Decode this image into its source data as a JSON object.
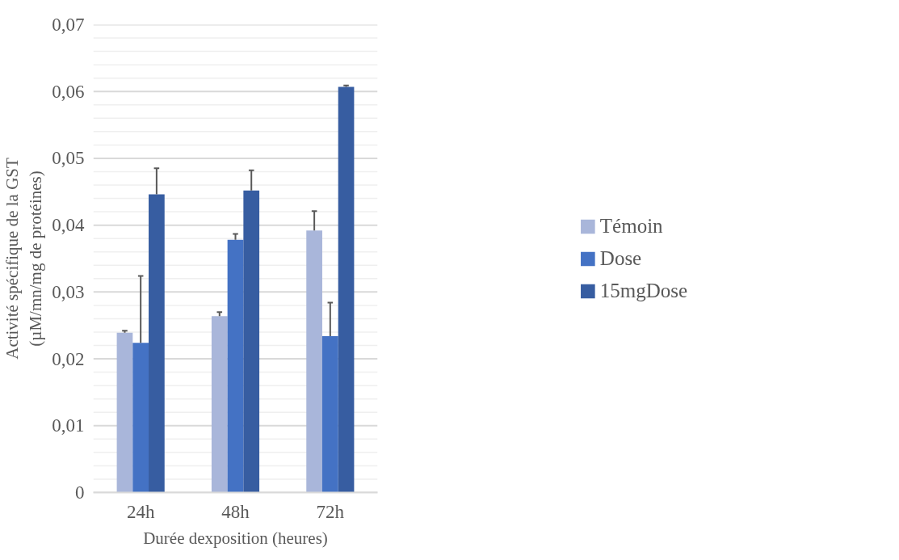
{
  "chart_data": {
    "type": "bar",
    "xlabel": "Durée dexposition (heures)",
    "ylabel": "Activité spécifique de la GST\n(µM/mn/mg de protéines)",
    "categories": [
      "24h",
      "48h",
      "72h"
    ],
    "series": [
      {
        "name": "Témoin",
        "color": "#a9b6da",
        "values": [
          0.0239,
          0.0264,
          0.0392
        ],
        "errors": [
          [
            0.0239,
            0.0242
          ],
          [
            0.0264,
            0.027
          ],
          [
            0.0392,
            0.0421
          ]
        ]
      },
      {
        "name": "Dose",
        "color": "#4472c4",
        "values": [
          0.0224,
          0.0378,
          0.0234
        ],
        "errors": [
          [
            0.0224,
            0.0324
          ],
          [
            0.0378,
            0.0387
          ],
          [
            0.0234,
            0.0284
          ]
        ]
      },
      {
        "name": "15mgDose",
        "color": "#375da1",
        "values": [
          0.0446,
          0.0452,
          0.0607
        ],
        "errors": [
          [
            0.0446,
            0.0485
          ],
          [
            0.0452,
            0.0482
          ],
          [
            0.0607,
            0.0609
          ]
        ]
      }
    ],
    "ylim": [
      0,
      0.07
    ],
    "yticks": [
      {
        "value": 0,
        "label": "0"
      },
      {
        "value": 0.002,
        "label": null
      },
      {
        "value": 0.004,
        "label": null
      },
      {
        "value": 0.006,
        "label": null
      },
      {
        "value": 0.008,
        "label": null
      },
      {
        "value": 0.01,
        "label": "0,01"
      },
      {
        "value": 0.012,
        "label": null
      },
      {
        "value": 0.014,
        "label": null
      },
      {
        "value": 0.016,
        "label": null
      },
      {
        "value": 0.018,
        "label": null
      },
      {
        "value": 0.02,
        "label": "0,02"
      },
      {
        "value": 0.022,
        "label": null
      },
      {
        "value": 0.024,
        "label": null
      },
      {
        "value": 0.026,
        "label": null
      },
      {
        "value": 0.028,
        "label": null
      },
      {
        "value": 0.03,
        "label": "0,03"
      },
      {
        "value": 0.032,
        "label": null
      },
      {
        "value": 0.034,
        "label": null
      },
      {
        "value": 0.036,
        "label": null
      },
      {
        "value": 0.038,
        "label": null
      },
      {
        "value": 0.04,
        "label": "0,04"
      },
      {
        "value": 0.042,
        "label": null
      },
      {
        "value": 0.044,
        "label": null
      },
      {
        "value": 0.046,
        "label": null
      },
      {
        "value": 0.048,
        "label": null
      },
      {
        "value": 0.05,
        "label": "0,05"
      },
      {
        "value": 0.052,
        "label": null
      },
      {
        "value": 0.054,
        "label": null
      },
      {
        "value": 0.056,
        "label": null
      },
      {
        "value": 0.058,
        "label": null
      },
      {
        "value": 0.06,
        "label": "0,06"
      },
      {
        "value": 0.062,
        "label": null
      },
      {
        "value": 0.064,
        "label": null
      },
      {
        "value": 0.066,
        "label": null
      },
      {
        "value": 0.068,
        "label": null
      },
      {
        "value": 0.07,
        "label": "0,07"
      }
    ],
    "grid": "y",
    "legend": "right"
  }
}
